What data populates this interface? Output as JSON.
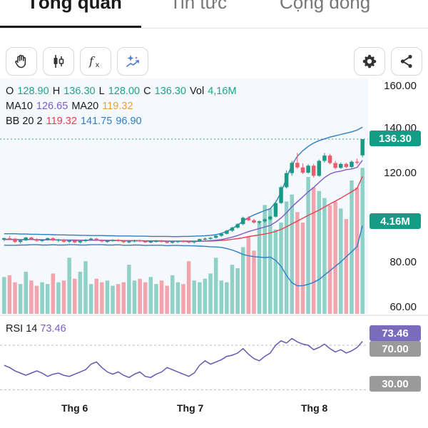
{
  "tabs": [
    {
      "label": "Tổng quan",
      "active": true
    },
    {
      "label": "Tin tức",
      "active": false
    },
    {
      "label": "Cộng đồng",
      "active": false
    }
  ],
  "toolbar": {
    "left": [
      "hand-icon",
      "candlestick-icon",
      "function-icon",
      "ai-sparkle-icon"
    ],
    "right": [
      "gear-icon",
      "share-icon"
    ]
  },
  "legend": {
    "o_label": "O",
    "o_value": "128.90",
    "h_label": "H",
    "h_value": "136.30",
    "l_label": "L",
    "l_value": "128.00",
    "c_label": "C",
    "c_value": "136.30",
    "vol_label": "Vol",
    "vol_value": "4,16M",
    "ma10_label": "MA10",
    "ma10_value": "126.65",
    "ma20_label": "MA20",
    "ma20_value": "119.32",
    "bb_label": "BB 20 2",
    "bb_mid": "119.32",
    "bb_upper": "141.75",
    "bb_lower": "96.90"
  },
  "price_axis": [
    "160.00",
    "140.00",
    "120.00",
    "80.00",
    "60.00"
  ],
  "price_tag": "136.30",
  "volume_tag": "4.16M",
  "rsi": {
    "label": "RSI 14",
    "value": "73.46",
    "levels": [
      "70.00",
      "30.00"
    ]
  },
  "time_axis": [
    "Thg 6",
    "Thg 7",
    "Thg 8"
  ],
  "colors": {
    "up": "#1fa38d",
    "down": "#ef6f7c",
    "bb": "#2e7ec2",
    "ma10": "#7d5cc6",
    "ma20": "#e8414f",
    "rsi": "#6a55b5"
  },
  "chart_data": {
    "type": "candlestick",
    "x_labels": [
      "Thg 6",
      "Thg 7",
      "Thg 8"
    ],
    "candles": [
      [
        90.5,
        91.5,
        89.8,
        91.2
      ],
      [
        91.2,
        92.2,
        90.6,
        91.0
      ],
      [
        91.0,
        91.3,
        89.0,
        89.5
      ],
      [
        89.5,
        90.5,
        88.8,
        90.2
      ],
      [
        90.2,
        91.8,
        89.9,
        91.5
      ],
      [
        91.5,
        91.9,
        90.4,
        90.8
      ],
      [
        90.8,
        91.2,
        89.6,
        90.0
      ],
      [
        90.0,
        90.8,
        89.4,
        90.4
      ],
      [
        90.4,
        91.5,
        90.1,
        91.2
      ],
      [
        91.2,
        91.6,
        89.8,
        90.2
      ],
      [
        90.2,
        90.9,
        89.5,
        90.6
      ],
      [
        90.6,
        90.9,
        89.2,
        89.6
      ],
      [
        89.6,
        90.5,
        89.0,
        90.1
      ],
      [
        90.1,
        90.4,
        88.9,
        89.3
      ],
      [
        89.3,
        90.3,
        88.8,
        89.9
      ],
      [
        89.9,
        90.8,
        89.4,
        90.5
      ],
      [
        90.5,
        91.4,
        90.1,
        91.0
      ],
      [
        91.0,
        91.3,
        89.9,
        90.3
      ],
      [
        90.3,
        90.6,
        89.2,
        89.7
      ],
      [
        89.7,
        90.4,
        89.1,
        90.0
      ],
      [
        90.0,
        90.7,
        89.6,
        90.4
      ],
      [
        90.4,
        90.8,
        89.5,
        89.9
      ],
      [
        89.9,
        90.2,
        88.9,
        89.4
      ],
      [
        89.4,
        90.1,
        88.8,
        89.8
      ],
      [
        89.8,
        90.5,
        89.3,
        90.2
      ],
      [
        90.2,
        90.6,
        89.5,
        89.8
      ],
      [
        89.8,
        90.1,
        89.0,
        89.4
      ],
      [
        89.4,
        90.0,
        88.9,
        89.7
      ],
      [
        89.7,
        90.3,
        89.2,
        90.0
      ],
      [
        90.0,
        90.4,
        89.3,
        89.6
      ],
      [
        89.6,
        89.9,
        88.8,
        89.2
      ],
      [
        89.2,
        89.8,
        88.7,
        89.6
      ],
      [
        89.6,
        90.1,
        89.1,
        89.9
      ],
      [
        89.9,
        90.3,
        89.3,
        89.7
      ],
      [
        89.7,
        90.0,
        88.9,
        89.3
      ],
      [
        89.3,
        89.9,
        88.7,
        89.8
      ],
      [
        89.8,
        91.0,
        89.5,
        90.8
      ],
      [
        90.8,
        91.5,
        90.2,
        91.0
      ],
      [
        91.0,
        91.7,
        90.5,
        91.4
      ],
      [
        91.4,
        92.5,
        91.0,
        92.3
      ],
      [
        92.3,
        93.5,
        91.8,
        93.2
      ],
      [
        93.2,
        95.0,
        92.9,
        94.6
      ],
      [
        94.6,
        96.4,
        94.1,
        96.0
      ],
      [
        96.0,
        98.0,
        95.5,
        97.6
      ],
      [
        97.6,
        101.0,
        97.1,
        100.5
      ],
      [
        100.5,
        101.2,
        99.0,
        99.4
      ],
      [
        99.4,
        100.0,
        97.8,
        98.3
      ],
      [
        98.3,
        99.2,
        97.5,
        98.9
      ],
      [
        98.9,
        100.2,
        98.3,
        99.8
      ],
      [
        99.8,
        101.4,
        99.2,
        101.0
      ],
      [
        101.0,
        108.0,
        100.6,
        107.2
      ],
      [
        107.2,
        115.0,
        106.8,
        114.4
      ],
      [
        114.4,
        122.0,
        113.8,
        120.8
      ],
      [
        120.8,
        126.4,
        119.6,
        125.5
      ],
      [
        125.5,
        130.0,
        122.8,
        123.4
      ],
      [
        123.4,
        125.2,
        120.4,
        121.0
      ],
      [
        121.0,
        124.8,
        120.6,
        124.2
      ],
      [
        124.2,
        125.0,
        118.8,
        119.6
      ],
      [
        119.6,
        127.0,
        119.2,
        126.4
      ],
      [
        126.4,
        130.0,
        125.6,
        128.8
      ],
      [
        128.8,
        129.6,
        124.8,
        125.4
      ],
      [
        125.4,
        126.4,
        122.6,
        123.2
      ],
      [
        123.2,
        125.6,
        122.8,
        125.0
      ],
      [
        125.0,
        125.6,
        123.0,
        123.6
      ],
      [
        123.6,
        126.6,
        123.0,
        126.0
      ],
      [
        126.0,
        127.4,
        124.8,
        125.6
      ],
      [
        128.9,
        136.3,
        128.0,
        136.3
      ]
    ],
    "volume": [
      1.05,
      1.1,
      0.9,
      0.85,
      1.2,
      0.95,
      0.8,
      0.9,
      0.85,
      1.15,
      0.9,
      0.95,
      1.6,
      1.0,
      1.2,
      1.5,
      0.85,
      1.0,
      0.9,
      0.95,
      0.8,
      0.85,
      0.9,
      1.4,
      0.95,
      1.0,
      0.9,
      1.05,
      0.85,
      0.95,
      0.8,
      1.1,
      0.9,
      0.85,
      1.5,
      0.95,
      0.9,
      1.0,
      1.15,
      1.6,
      0.95,
      0.9,
      1.4,
      1.3,
      1.9,
      2.2,
      1.8,
      2.6,
      3.1,
      3.0,
      2.4,
      2.6,
      3.2,
      3.4,
      2.9,
      2.6,
      3.9,
      3.6,
      3.5,
      3.3,
      3.1,
      3.2,
      3.0,
      2.7,
      3.8,
      3.6,
      4.16
    ],
    "volume_unit": "M",
    "ma10": [
      90.6,
      90.7,
      90.6,
      90.5,
      90.6,
      90.6,
      90.5,
      90.4,
      90.5,
      90.5,
      90.4,
      90.3,
      90.3,
      90.2,
      90.2,
      90.2,
      90.3,
      90.3,
      90.2,
      90.2,
      90.1,
      90.1,
      90.0,
      90.0,
      90.0,
      90.0,
      89.9,
      89.9,
      89.9,
      89.9,
      89.8,
      89.8,
      89.8,
      89.8,
      89.7,
      89.7,
      89.8,
      89.9,
      90.1,
      90.3,
      90.6,
      91.1,
      91.7,
      92.4,
      93.3,
      94.2,
      94.9,
      95.6,
      96.3,
      97.0,
      98.5,
      100.4,
      102.8,
      105.5,
      107.8,
      110.0,
      112.3,
      114.3,
      116.6,
      118.8,
      120.4,
      121.3,
      121.7,
      122.4,
      122.7,
      123.4,
      126.65
    ],
    "ma20": [
      90.6,
      90.6,
      90.6,
      90.6,
      90.6,
      90.6,
      90.6,
      90.5,
      90.5,
      90.5,
      90.4,
      90.4,
      90.4,
      90.4,
      90.3,
      90.3,
      90.3,
      90.3,
      90.3,
      90.2,
      90.2,
      90.2,
      90.1,
      90.1,
      90.1,
      90.1,
      90.0,
      90.0,
      90.0,
      90.0,
      89.9,
      89.9,
      89.9,
      89.9,
      89.9,
      89.9,
      89.9,
      89.9,
      89.9,
      90.0,
      90.2,
      90.4,
      90.7,
      91.0,
      91.4,
      91.9,
      92.3,
      92.7,
      93.1,
      93.6,
      94.3,
      95.2,
      96.4,
      97.7,
      99.0,
      100.3,
      101.6,
      102.8,
      104.0,
      105.4,
      106.8,
      108.1,
      109.4,
      110.9,
      112.3,
      113.9,
      119.32
    ],
    "bb_upper": [
      93.2,
      93.2,
      93.2,
      93.1,
      93.1,
      93.0,
      93.0,
      92.9,
      92.9,
      92.8,
      92.7,
      92.7,
      92.6,
      92.6,
      92.5,
      92.5,
      92.4,
      92.4,
      92.4,
      92.3,
      92.3,
      92.2,
      92.2,
      92.2,
      92.1,
      92.1,
      92.1,
      92.0,
      92.0,
      92.0,
      92.0,
      91.9,
      91.9,
      92.0,
      92.0,
      92.1,
      92.2,
      92.3,
      92.5,
      92.8,
      93.4,
      94.3,
      95.6,
      97.1,
      99.0,
      100.6,
      101.8,
      102.8,
      103.8,
      104.6,
      107.5,
      112.0,
      118.5,
      124.5,
      128.5,
      131.0,
      133.0,
      134.5,
      135.6,
      136.4,
      137.2,
      137.8,
      138.4,
      139.0,
      139.6,
      140.4,
      141.75
    ],
    "bb_lower": [
      88.0,
      88.0,
      88.0,
      88.1,
      88.1,
      88.2,
      88.2,
      88.1,
      88.1,
      88.2,
      88.1,
      88.1,
      88.2,
      88.2,
      88.1,
      88.1,
      88.2,
      88.2,
      88.2,
      88.1,
      88.1,
      88.2,
      88.0,
      88.0,
      88.1,
      88.1,
      87.9,
      88.0,
      88.0,
      88.0,
      87.8,
      87.9,
      87.9,
      87.8,
      87.8,
      87.7,
      87.6,
      87.5,
      87.3,
      87.2,
      87.0,
      86.5,
      85.8,
      84.9,
      83.8,
      83.2,
      82.8,
      82.6,
      82.4,
      82.6,
      81.1,
      78.4,
      74.3,
      70.9,
      69.5,
      69.6,
      70.2,
      71.1,
      72.4,
      74.4,
      76.4,
      78.4,
      80.4,
      82.8,
      85.0,
      87.4,
      96.9
    ],
    "rsi": [
      52,
      50,
      47,
      45,
      43,
      45,
      47,
      45,
      42,
      44,
      45,
      43,
      42,
      44,
      46,
      48,
      53,
      55,
      50,
      46,
      44,
      46,
      43,
      41,
      44,
      46,
      42,
      41,
      44,
      46,
      50,
      48,
      46,
      44,
      42,
      45,
      52,
      56,
      53,
      55,
      57,
      60,
      61,
      63,
      67,
      62,
      58,
      56,
      60,
      63,
      70,
      74,
      72,
      76,
      73,
      71,
      70,
      66,
      68,
      71,
      67,
      64,
      66,
      63,
      65,
      68,
      73.46
    ],
    "price_range": [
      55,
      165
    ],
    "rsi_range": [
      20,
      95
    ],
    "price_ticks": [
      160,
      140,
      120,
      80,
      60
    ],
    "rsi_levels": [
      70,
      30
    ]
  }
}
